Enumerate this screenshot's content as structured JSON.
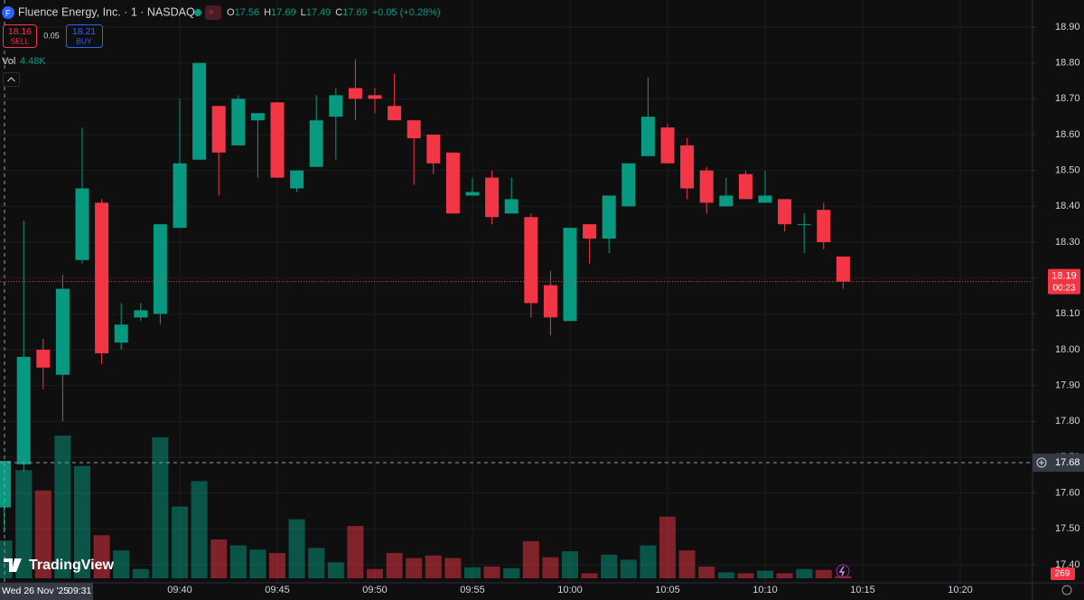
{
  "chart_data": {
    "type": "candlestick",
    "title": "Fluence Energy, Inc. · 1 · NASDAQ",
    "ohlc_labels": [
      "O",
      "H",
      "L",
      "C"
    ],
    "change": "+0.05 (+0.28%)",
    "sell_price": "18.16",
    "sell_label": "SELL",
    "spread": "0.05",
    "buy_price": "18.21",
    "buy_label": "BUY",
    "volume_title": "Vol",
    "volume_label": "4.48K",
    "countdown": "00:23",
    "crosshair_price": "17.68",
    "crosshair_date": "Wed 26 Nov '25",
    "logo": "TradingView",
    "up_color": "#089981",
    "down_color": "#f23645",
    "categories": [
      "09:31",
      "09:32",
      "09:33",
      "09:34",
      "09:35",
      "09:36",
      "09:37",
      "09:38",
      "09:39",
      "09:40",
      "09:41",
      "09:42",
      "09:43",
      "09:44",
      "09:45",
      "09:46",
      "09:47",
      "09:48",
      "09:49",
      "09:50",
      "09:51",
      "09:52",
      "09:53",
      "09:54",
      "09:55",
      "09:56",
      "09:57",
      "09:58",
      "09:59",
      "10:00",
      "10:01",
      "10:02",
      "10:03",
      "10:04",
      "10:05",
      "10:06",
      "10:07",
      "10:08",
      "10:09",
      "10:10",
      "10:11",
      "10:12",
      "10:13",
      "10:14"
    ],
    "open": [
      17.56,
      17.68,
      18.0,
      17.93,
      18.25,
      18.41,
      18.02,
      18.09,
      18.1,
      18.34,
      18.53,
      18.68,
      18.57,
      18.64,
      18.69,
      18.45,
      18.51,
      18.65,
      18.73,
      18.71,
      18.68,
      18.64,
      18.6,
      18.55,
      18.43,
      18.48,
      18.38,
      18.37,
      18.18,
      18.08,
      18.35,
      18.31,
      18.4,
      18.54,
      18.62,
      18.57,
      18.5,
      18.4,
      18.49,
      18.41,
      18.42,
      18.35,
      18.39,
      18.26
    ],
    "high": [
      17.69,
      18.36,
      18.03,
      18.21,
      18.62,
      18.42,
      18.13,
      18.13,
      18.35,
      18.7,
      18.8,
      18.68,
      18.71,
      18.66,
      18.69,
      18.5,
      18.71,
      18.73,
      18.81,
      18.73,
      18.77,
      18.64,
      18.6,
      18.55,
      18.48,
      18.5,
      18.48,
      18.38,
      18.22,
      18.34,
      18.35,
      18.43,
      18.52,
      18.76,
      18.63,
      18.59,
      18.51,
      18.48,
      18.5,
      18.5,
      18.42,
      18.38,
      18.41,
      18.26
    ],
    "low": [
      17.49,
      17.66,
      17.89,
      17.8,
      18.24,
      17.96,
      18.0,
      18.08,
      18.07,
      18.34,
      18.53,
      18.43,
      18.57,
      18.48,
      18.48,
      18.44,
      18.51,
      18.53,
      18.64,
      18.66,
      18.64,
      18.46,
      18.49,
      18.38,
      18.43,
      18.35,
      18.38,
      18.09,
      18.04,
      18.08,
      18.24,
      18.27,
      18.4,
      18.54,
      18.52,
      18.42,
      18.38,
      18.4,
      18.42,
      18.41,
      18.33,
      18.27,
      18.28,
      18.17
    ],
    "close": [
      17.69,
      17.98,
      17.95,
      18.17,
      18.45,
      17.99,
      18.07,
      18.11,
      18.35,
      18.52,
      18.8,
      18.55,
      18.7,
      18.66,
      18.48,
      18.5,
      18.64,
      18.71,
      18.7,
      18.7,
      18.64,
      18.59,
      18.52,
      18.38,
      18.44,
      18.37,
      18.42,
      18.13,
      18.09,
      18.34,
      18.31,
      18.43,
      18.52,
      18.65,
      18.52,
      18.45,
      18.41,
      18.43,
      18.42,
      18.43,
      18.35,
      18.35,
      18.3,
      18.19
    ],
    "volume": [
      4480,
      12800,
      10400,
      16900,
      13300,
      5100,
      3300,
      1100,
      16700,
      8500,
      11500,
      4600,
      3900,
      3400,
      3000,
      7000,
      3600,
      1900,
      6200,
      1100,
      3000,
      2400,
      2700,
      2400,
      1300,
      1400,
      1200,
      4400,
      2500,
      3200,
      600,
      2800,
      2200,
      3900,
      7300,
      3300,
      1400,
      700,
      600,
      900,
      600,
      1100,
      1000,
      269
    ],
    "ylim": [
      17.4,
      18.9
    ],
    "yticks": [
      {
        "value": 18.9,
        "label": "18.90"
      },
      {
        "value": 18.8,
        "label": "18.80"
      },
      {
        "value": 18.7,
        "label": "18.70"
      },
      {
        "value": 18.6,
        "label": "18.60"
      },
      {
        "value": 18.5,
        "label": "18.50"
      },
      {
        "value": 18.4,
        "label": "18.40"
      },
      {
        "value": 18.3,
        "label": "18.30"
      },
      {
        "value": 18.2,
        "label": "18.20"
      },
      {
        "value": 18.1,
        "label": "18.10"
      },
      {
        "value": 18.0,
        "label": "18.00"
      },
      {
        "value": 17.9,
        "label": "17.90"
      },
      {
        "value": 17.8,
        "label": "17.80"
      },
      {
        "value": 17.7,
        "label": "17.70"
      },
      {
        "value": 17.6,
        "label": "17.60"
      },
      {
        "value": 17.5,
        "label": "17.50"
      },
      {
        "value": 17.4,
        "label": "17.40"
      }
    ],
    "xtick_labels": [
      "09:40",
      "09:45",
      "09:50",
      "09:55",
      "10:00",
      "10:05",
      "10:10",
      "10:15",
      "10:20"
    ],
    "grid": true
  }
}
